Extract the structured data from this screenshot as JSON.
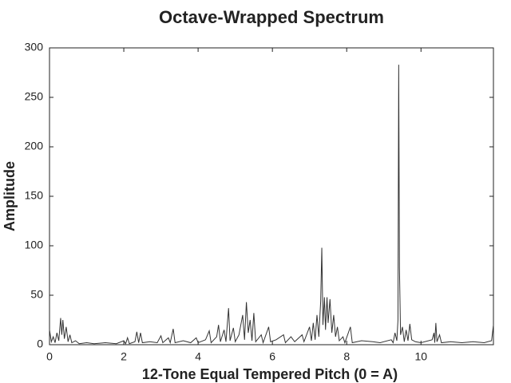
{
  "chart_data": {
    "type": "line",
    "title": "Octave-Wrapped Spectrum",
    "x_label": "12-Tone Equal Tempered Pitch (0 = A)",
    "y_label": "Amplitude",
    "x": [
      0.0,
      0.05,
      0.1,
      0.15,
      0.2,
      0.25,
      0.3,
      0.33,
      0.36,
      0.4,
      0.45,
      0.5,
      0.55,
      0.6,
      0.7,
      0.8,
      1.0,
      1.2,
      1.5,
      1.8,
      2.0,
      2.05,
      2.1,
      2.15,
      2.3,
      2.35,
      2.4,
      2.45,
      2.5,
      2.7,
      2.9,
      3.0,
      3.05,
      3.2,
      3.25,
      3.33,
      3.38,
      3.6,
      3.8,
      3.95,
      4.0,
      4.2,
      4.3,
      4.35,
      4.5,
      4.55,
      4.6,
      4.7,
      4.75,
      4.82,
      4.86,
      4.95,
      5.0,
      5.1,
      5.2,
      5.25,
      5.3,
      5.35,
      5.4,
      5.45,
      5.5,
      5.55,
      5.7,
      5.75,
      5.9,
      5.95,
      6.1,
      6.3,
      6.35,
      6.5,
      6.6,
      6.8,
      6.85,
      7.0,
      7.05,
      7.1,
      7.15,
      7.2,
      7.25,
      7.3,
      7.33,
      7.36,
      7.4,
      7.43,
      7.47,
      7.5,
      7.55,
      7.6,
      7.65,
      7.7,
      7.75,
      7.8,
      7.9,
      7.95,
      8.1,
      8.15,
      8.4,
      8.7,
      8.9,
      9.2,
      9.25,
      9.3,
      9.35,
      9.38,
      9.4,
      9.42,
      9.45,
      9.5,
      9.55,
      9.6,
      9.65,
      9.7,
      9.75,
      9.85,
      10.0,
      10.3,
      10.35,
      10.37,
      10.4,
      10.43,
      10.5,
      10.55,
      10.8,
      11.1,
      11.4,
      11.7,
      11.9,
      11.95
    ],
    "series": [
      {
        "color": "#333333",
        "values": [
          15,
          3,
          8,
          2,
          12,
          4,
          27,
          10,
          25,
          6,
          18,
          3,
          10,
          2,
          4,
          1,
          2,
          1,
          2,
          1,
          4,
          1,
          7,
          1,
          3,
          13,
          2,
          12,
          2,
          3,
          2,
          9,
          2,
          7,
          2,
          16,
          2,
          4,
          2,
          7,
          2,
          5,
          14,
          2,
          8,
          20,
          3,
          15,
          3,
          37,
          4,
          17,
          3,
          10,
          30,
          5,
          43,
          12,
          25,
          4,
          32,
          3,
          10,
          2,
          18,
          3,
          5,
          10,
          2,
          8,
          3,
          10,
          3,
          18,
          4,
          22,
          5,
          30,
          8,
          44,
          98,
          20,
          48,
          15,
          48,
          22,
          46,
          12,
          30,
          8,
          18,
          4,
          8,
          2,
          18,
          2,
          4,
          3,
          2,
          5,
          2,
          12,
          4,
          25,
          283,
          78,
          10,
          18,
          3,
          15,
          4,
          21,
          5,
          3,
          2,
          5,
          12,
          2,
          22,
          3,
          10,
          2,
          3,
          2,
          3,
          2,
          4,
          20
        ]
      }
    ],
    "xlim": [
      0,
      11.95
    ],
    "ylim": [
      0,
      300
    ],
    "xticks": [
      0,
      2,
      4,
      6,
      8,
      10
    ],
    "yticks": [
      0,
      50,
      100,
      150,
      200,
      250,
      300
    ]
  }
}
